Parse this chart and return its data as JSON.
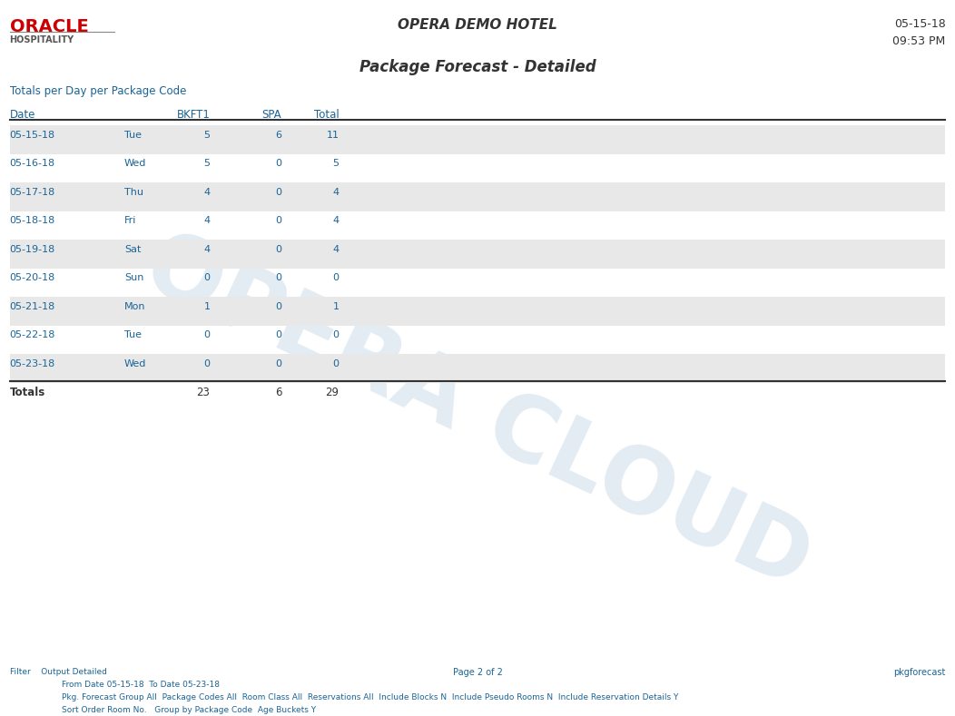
{
  "hotel_name": "OPERA DEMO HOTEL",
  "date_generated": "05-15-18",
  "time_generated": "09:53 PM",
  "report_title": "Package Forecast - Detailed",
  "section_title": "Totals per Day per Package Code",
  "columns": [
    "Date",
    "",
    "BKFT1",
    "SPA",
    "Total"
  ],
  "rows": [
    {
      "date": "05-15-18",
      "day": "Tue",
      "bkft1": 5,
      "spa": 6,
      "total": 11,
      "highlight": true
    },
    {
      "date": "05-16-18",
      "day": "Wed",
      "bkft1": 5,
      "spa": 0,
      "total": 5,
      "highlight": false
    },
    {
      "date": "05-17-18",
      "day": "Thu",
      "bkft1": 4,
      "spa": 0,
      "total": 4,
      "highlight": true
    },
    {
      "date": "05-18-18",
      "day": "Fri",
      "bkft1": 4,
      "spa": 0,
      "total": 4,
      "highlight": false
    },
    {
      "date": "05-19-18",
      "day": "Sat",
      "bkft1": 4,
      "spa": 0,
      "total": 4,
      "highlight": true
    },
    {
      "date": "05-20-18",
      "day": "Sun",
      "bkft1": 0,
      "spa": 0,
      "total": 0,
      "highlight": false
    },
    {
      "date": "05-21-18",
      "day": "Mon",
      "bkft1": 1,
      "spa": 0,
      "total": 1,
      "highlight": true
    },
    {
      "date": "05-22-18",
      "day": "Tue",
      "bkft1": 0,
      "spa": 0,
      "total": 0,
      "highlight": false
    },
    {
      "date": "05-23-18",
      "day": "Wed",
      "bkft1": 0,
      "spa": 0,
      "total": 0,
      "highlight": true
    }
  ],
  "totals": {
    "label": "Totals",
    "bkft1": 23,
    "spa": 6,
    "total": 29
  },
  "filter_text_line1": "Filter    Output Detailed",
  "filter_text_line2": "From Date 05-15-18  To Date 05-23-18",
  "filter_text_line3": "Pkg. Forecast Group All  Package Codes All  Room Class All  Reservations All  Include Blocks N  Include Pseudo Rooms N  Include Reservation Details Y",
  "filter_text_line4": "Sort Order Room No.   Group by Package Code  Age Buckets Y",
  "page_text": "Page 2 of 2",
  "report_name": "pkgforecast",
  "oracle_red": "#cc0000",
  "oracle_gray": "#555555",
  "text_blue": "#1a6496",
  "header_color": "#2e6da4",
  "highlight_bg": "#e8e8e8",
  "watermark_color": "#c8d8e8",
  "bg_color": "#ffffff",
  "line_color": "#333333",
  "data_color": "#1a6496"
}
